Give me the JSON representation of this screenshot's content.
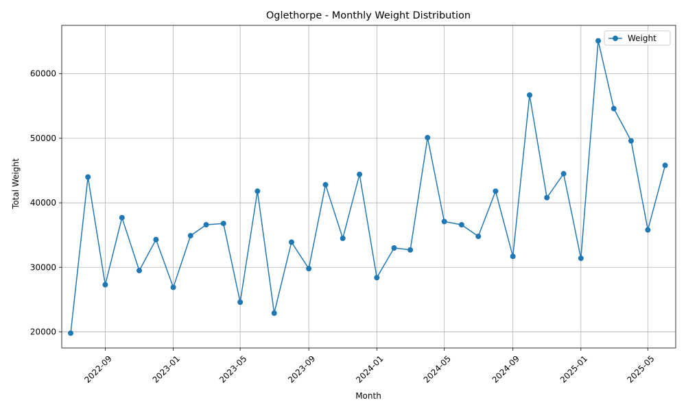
{
  "chart_data": {
    "type": "line",
    "title": "Oglethorpe - Monthly Weight Distribution",
    "xlabel": "Month",
    "ylabel": "Total Weight",
    "grid": true,
    "legend_position": "top-right",
    "colors": {
      "series": "#1f77b4"
    },
    "x_ticks": [
      "2022-09",
      "2023-01",
      "2023-05",
      "2023-09",
      "2024-01",
      "2024-05",
      "2024-09",
      "2025-01",
      "2025-05"
    ],
    "y_ticks": [
      20000,
      30000,
      40000,
      50000,
      60000
    ],
    "xlim": [
      "2022-06-15",
      "2025-06-20"
    ],
    "ylim": [
      17500,
      67500
    ],
    "series": [
      {
        "name": "Weight",
        "points": [
          {
            "x": "2022-07",
            "y": 19800
          },
          {
            "x": "2022-08",
            "y": 44000
          },
          {
            "x": "2022-09",
            "y": 27300
          },
          {
            "x": "2022-10",
            "y": 37700
          },
          {
            "x": "2022-11",
            "y": 29500
          },
          {
            "x": "2022-12",
            "y": 34300
          },
          {
            "x": "2023-01",
            "y": 26900
          },
          {
            "x": "2023-02",
            "y": 34900
          },
          {
            "x": "2023-03",
            "y": 36600
          },
          {
            "x": "2023-04",
            "y": 36800
          },
          {
            "x": "2023-05",
            "y": 24600
          },
          {
            "x": "2023-06",
            "y": 41800
          },
          {
            "x": "2023-07",
            "y": 22900
          },
          {
            "x": "2023-08",
            "y": 33900
          },
          {
            "x": "2023-09",
            "y": 29800
          },
          {
            "x": "2023-10",
            "y": 42800
          },
          {
            "x": "2023-11",
            "y": 34500
          },
          {
            "x": "2023-12",
            "y": 44400
          },
          {
            "x": "2024-01",
            "y": 28400
          },
          {
            "x": "2024-02",
            "y": 33000
          },
          {
            "x": "2024-03",
            "y": 32700
          },
          {
            "x": "2024-04",
            "y": 50100
          },
          {
            "x": "2024-05",
            "y": 37100
          },
          {
            "x": "2024-06",
            "y": 36600
          },
          {
            "x": "2024-07",
            "y": 34800
          },
          {
            "x": "2024-08",
            "y": 41800
          },
          {
            "x": "2024-09",
            "y": 31700
          },
          {
            "x": "2024-10",
            "y": 56700
          },
          {
            "x": "2024-11",
            "y": 40800
          },
          {
            "x": "2024-12",
            "y": 44500
          },
          {
            "x": "2025-01",
            "y": 31400
          },
          {
            "x": "2025-02",
            "y": 65100
          },
          {
            "x": "2025-03",
            "y": 54600
          },
          {
            "x": "2025-04",
            "y": 49600
          },
          {
            "x": "2025-05",
            "y": 35800
          },
          {
            "x": "2025-06",
            "y": 45800
          }
        ]
      }
    ]
  }
}
